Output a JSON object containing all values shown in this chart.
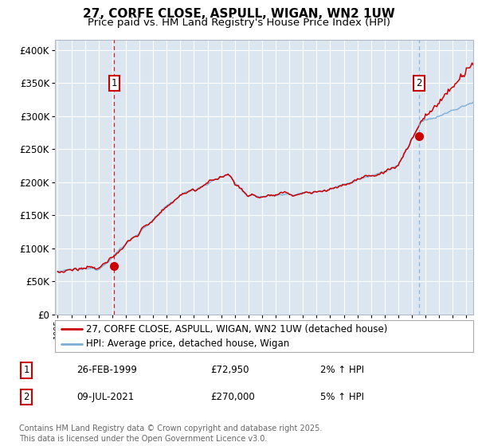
{
  "title_line1": "27, CORFE CLOSE, ASPULL, WIGAN, WN2 1UW",
  "title_line2": "Price paid vs. HM Land Registry's House Price Index (HPI)",
  "ylabel_ticks": [
    "£0",
    "£50K",
    "£100K",
    "£150K",
    "£200K",
    "£250K",
    "£300K",
    "£350K",
    "£400K"
  ],
  "ytick_vals": [
    0,
    50000,
    100000,
    150000,
    200000,
    250000,
    300000,
    350000,
    400000
  ],
  "ylim": [
    0,
    415000
  ],
  "xlim_start": 1994.8,
  "xlim_end": 2025.5,
  "bg_color": "#dce6f1",
  "fig_bg_color": "#ffffff",
  "line_red_color": "#cc0000",
  "line_blue_color": "#7aadd4",
  "line1_label": "27, CORFE CLOSE, ASPULL, WIGAN, WN2 1UW (detached house)",
  "line2_label": "HPI: Average price, detached house, Wigan",
  "sale1_year": 1999.15,
  "sale1_price": 72950,
  "sale1_date": "26-FEB-1999",
  "sale1_hpi_text": "2% ↑ HPI",
  "sale2_year": 2021.52,
  "sale2_price": 270000,
  "sale2_date": "09-JUL-2021",
  "sale2_hpi_text": "5% ↑ HPI",
  "marker_y": 350000,
  "footer": "Contains HM Land Registry data © Crown copyright and database right 2025.\nThis data is licensed under the Open Government Licence v3.0."
}
